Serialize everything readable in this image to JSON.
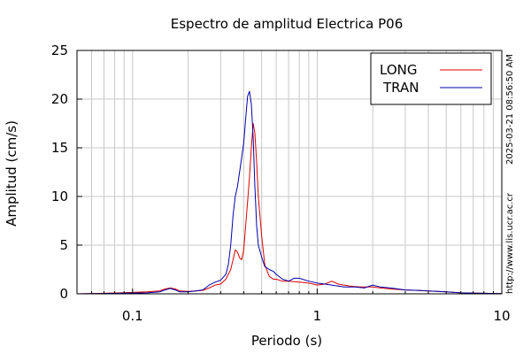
{
  "chart_data": {
    "type": "line",
    "title": "Espectro de amplitud Electrica P06",
    "xlabel": "Periodo (s)",
    "ylabel": "Amplitud (cm/s)",
    "x_scale": "log",
    "xlim": [
      0.05,
      10
    ],
    "ylim": [
      0,
      25
    ],
    "x_tick_labels": [
      {
        "value": 0.1,
        "label": "0.1"
      },
      {
        "value": 1,
        "label": "1"
      },
      {
        "value": 10,
        "label": "10"
      }
    ],
    "y_tick_labels": [
      {
        "value": 0,
        "label": "0"
      },
      {
        "value": 5,
        "label": "5"
      },
      {
        "value": 10,
        "label": "10"
      },
      {
        "value": 15,
        "label": "15"
      },
      {
        "value": 20,
        "label": "20"
      },
      {
        "value": 25,
        "label": "25"
      }
    ],
    "grid": true,
    "legend_position": "top-right",
    "side_annotations": [
      "2025-03-21 08:56:50 AM",
      "http://www.lis.ucr.ac.cr"
    ],
    "series": [
      {
        "name": "LONG",
        "color": "#dd0000",
        "points": [
          [
            0.05,
            0.0
          ],
          [
            0.06,
            0.02
          ],
          [
            0.07,
            0.05
          ],
          [
            0.08,
            0.08
          ],
          [
            0.09,
            0.12
          ],
          [
            0.1,
            0.15
          ],
          [
            0.12,
            0.2
          ],
          [
            0.14,
            0.3
          ],
          [
            0.15,
            0.5
          ],
          [
            0.16,
            0.6
          ],
          [
            0.17,
            0.5
          ],
          [
            0.18,
            0.3
          ],
          [
            0.2,
            0.25
          ],
          [
            0.22,
            0.3
          ],
          [
            0.24,
            0.35
          ],
          [
            0.26,
            0.6
          ],
          [
            0.28,
            0.9
          ],
          [
            0.3,
            1.0
          ],
          [
            0.32,
            1.5
          ],
          [
            0.34,
            2.5
          ],
          [
            0.35,
            3.5
          ],
          [
            0.36,
            4.5
          ],
          [
            0.37,
            4.3
          ],
          [
            0.38,
            3.7
          ],
          [
            0.39,
            3.5
          ],
          [
            0.4,
            4.5
          ],
          [
            0.41,
            7.0
          ],
          [
            0.42,
            9.5
          ],
          [
            0.43,
            12.0
          ],
          [
            0.44,
            15.0
          ],
          [
            0.45,
            17.5
          ],
          [
            0.46,
            16.5
          ],
          [
            0.47,
            13.5
          ],
          [
            0.48,
            10.0
          ],
          [
            0.5,
            6.0
          ],
          [
            0.52,
            3.0
          ],
          [
            0.55,
            1.8
          ],
          [
            0.58,
            1.5
          ],
          [
            0.6,
            1.5
          ],
          [
            0.65,
            1.3
          ],
          [
            0.7,
            1.3
          ],
          [
            0.8,
            1.2
          ],
          [
            0.9,
            1.1
          ],
          [
            1.0,
            0.9
          ],
          [
            1.1,
            1.0
          ],
          [
            1.2,
            1.3
          ],
          [
            1.3,
            1.0
          ],
          [
            1.5,
            0.8
          ],
          [
            1.7,
            0.7
          ],
          [
            2.0,
            0.7
          ],
          [
            2.2,
            0.6
          ],
          [
            2.5,
            0.5
          ],
          [
            3.0,
            0.4
          ],
          [
            3.5,
            0.35
          ],
          [
            4.0,
            0.3
          ],
          [
            4.5,
            0.25
          ],
          [
            5.0,
            0.2
          ],
          [
            6.0,
            0.1
          ],
          [
            7.0,
            0.08
          ],
          [
            8.0,
            0.05
          ],
          [
            10.0,
            0.02
          ]
        ]
      },
      {
        "name": "TRAN",
        "color": "#0000aa",
        "points": [
          [
            0.05,
            0.0
          ],
          [
            0.06,
            0.02
          ],
          [
            0.07,
            0.04
          ],
          [
            0.08,
            0.05
          ],
          [
            0.09,
            0.06
          ],
          [
            0.1,
            0.08
          ],
          [
            0.12,
            0.1
          ],
          [
            0.14,
            0.2
          ],
          [
            0.15,
            0.4
          ],
          [
            0.16,
            0.55
          ],
          [
            0.17,
            0.4
          ],
          [
            0.18,
            0.2
          ],
          [
            0.2,
            0.2
          ],
          [
            0.22,
            0.3
          ],
          [
            0.24,
            0.4
          ],
          [
            0.26,
            0.9
          ],
          [
            0.28,
            1.2
          ],
          [
            0.3,
            1.4
          ],
          [
            0.32,
            2.0
          ],
          [
            0.33,
            3.0
          ],
          [
            0.34,
            5.0
          ],
          [
            0.35,
            8.0
          ],
          [
            0.36,
            10.0
          ],
          [
            0.37,
            11.0
          ],
          [
            0.38,
            12.5
          ],
          [
            0.39,
            14.0
          ],
          [
            0.4,
            15.5
          ],
          [
            0.41,
            18.0
          ],
          [
            0.42,
            20.3
          ],
          [
            0.43,
            20.8
          ],
          [
            0.44,
            19.5
          ],
          [
            0.45,
            16.0
          ],
          [
            0.46,
            11.0
          ],
          [
            0.47,
            7.0
          ],
          [
            0.48,
            5.0
          ],
          [
            0.5,
            3.8
          ],
          [
            0.52,
            2.8
          ],
          [
            0.55,
            2.5
          ],
          [
            0.58,
            2.3
          ],
          [
            0.6,
            2.0
          ],
          [
            0.65,
            1.5
          ],
          [
            0.7,
            1.3
          ],
          [
            0.75,
            1.6
          ],
          [
            0.8,
            1.6
          ],
          [
            0.9,
            1.3
          ],
          [
            1.0,
            1.1
          ],
          [
            1.1,
            1.0
          ],
          [
            1.2,
            0.9
          ],
          [
            1.4,
            0.7
          ],
          [
            1.6,
            0.7
          ],
          [
            1.8,
            0.6
          ],
          [
            2.0,
            0.9
          ],
          [
            2.2,
            0.7
          ],
          [
            2.5,
            0.6
          ],
          [
            3.0,
            0.4
          ],
          [
            3.5,
            0.35
          ],
          [
            4.0,
            0.3
          ],
          [
            4.5,
            0.25
          ],
          [
            5.0,
            0.2
          ],
          [
            6.0,
            0.1
          ],
          [
            7.0,
            0.07
          ],
          [
            8.0,
            0.05
          ],
          [
            10.0,
            0.02
          ]
        ]
      }
    ]
  }
}
